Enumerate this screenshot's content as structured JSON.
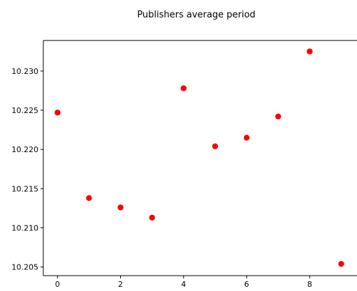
{
  "chart_data": {
    "type": "scatter",
    "title": "Publishers average period",
    "xlabel": "",
    "ylabel": "",
    "x": [
      0,
      1,
      2,
      3,
      4,
      5,
      6,
      7,
      8,
      9
    ],
    "y": [
      10.2247,
      10.2138,
      10.2126,
      10.2113,
      10.2278,
      10.2204,
      10.2215,
      10.2242,
      10.2325,
      10.2054
    ],
    "xlim": [
      -0.45,
      9.5
    ],
    "ylim": [
      10.2039,
      10.2339
    ],
    "x_ticks": [
      0,
      2,
      4,
      6,
      8
    ],
    "x_tick_labels": [
      "0",
      "2",
      "4",
      "6",
      "8"
    ],
    "y_ticks": [
      10.205,
      10.21,
      10.215,
      10.22,
      10.225,
      10.23
    ],
    "y_tick_labels": [
      "10.205",
      "10.210",
      "10.215",
      "10.220",
      "10.225",
      "10.230"
    ],
    "grid": false,
    "marker_color": "#ff0000"
  }
}
